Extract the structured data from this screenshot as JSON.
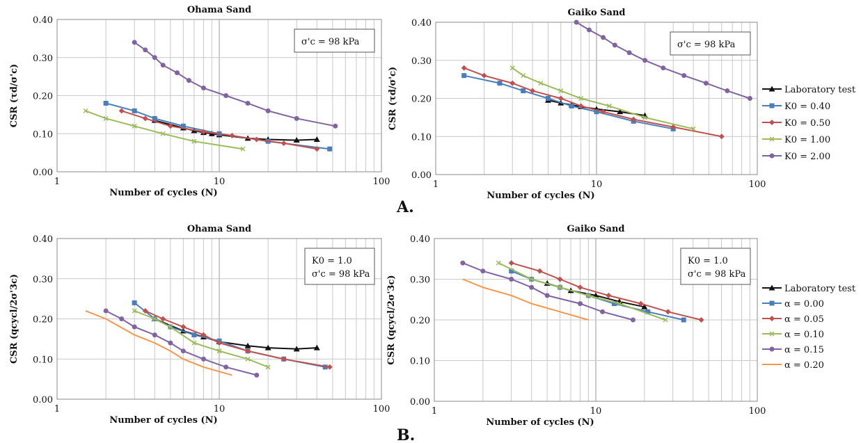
{
  "figure": {
    "label_a": "A.",
    "label_b": "B."
  },
  "legend_a": [
    "Laboratory test",
    "K0 = 0.40",
    "K0 = 0.50",
    "K0 = 1.00",
    "K0 = 2.00"
  ],
  "legend_b": [
    "Laboratory test",
    "α = 0.00",
    "α = 0.05",
    "α = 0.10",
    "α = 0.15",
    "α = 0.20"
  ],
  "chart_data": [
    {
      "type": "line",
      "title": "Ohama Sand",
      "xlabel": "Number of cycles (N)",
      "ylabel": "CSR (τd/σ'c)",
      "xscale": "log",
      "xlim": [
        1,
        100
      ],
      "ylim": [
        0,
        0.4
      ],
      "x_ticks": [
        "1",
        "10",
        "100"
      ],
      "y_ticks": [
        "0.00",
        "0.10",
        "0.20",
        "0.30",
        "0.40"
      ],
      "annotation": [
        "σ'c = 98 kPa"
      ],
      "grid": true,
      "legend": false,
      "series": [
        {
          "name": "Laboratory test",
          "color": "#111111",
          "marker": "triangle",
          "x": [
            4,
            6,
            7,
            8,
            9,
            10,
            15,
            20,
            30,
            40
          ],
          "y": [
            0.135,
            0.115,
            0.108,
            0.103,
            0.1,
            0.097,
            0.088,
            0.085,
            0.083,
            0.085
          ]
        },
        {
          "name": "K0 = 0.40",
          "color": "#4a7ebb",
          "marker": "square",
          "x": [
            2,
            3,
            4,
            6,
            10,
            20,
            48
          ],
          "y": [
            0.18,
            0.16,
            0.14,
            0.12,
            0.1,
            0.08,
            0.06
          ]
        },
        {
          "name": "K0 = 0.50",
          "color": "#c0504d",
          "marker": "diamond",
          "x": [
            2.5,
            3.5,
            5,
            8,
            12,
            17,
            25,
            40
          ],
          "y": [
            0.16,
            0.14,
            0.12,
            0.105,
            0.095,
            0.085,
            0.075,
            0.06
          ]
        },
        {
          "name": "K0 = 1.00",
          "color": "#9bbb59",
          "marker": "x",
          "x": [
            1.5,
            2,
            3,
            4.5,
            7,
            14
          ],
          "y": [
            0.16,
            0.14,
            0.12,
            0.1,
            0.08,
            0.06
          ]
        },
        {
          "name": "K0 = 2.00",
          "color": "#8064a2",
          "marker": "circle",
          "x": [
            3,
            3.5,
            4,
            4.5,
            5.5,
            6.5,
            8,
            11,
            15,
            20,
            30,
            52
          ],
          "y": [
            0.34,
            0.32,
            0.3,
            0.28,
            0.26,
            0.24,
            0.22,
            0.2,
            0.18,
            0.16,
            0.14,
            0.12
          ]
        }
      ]
    },
    {
      "type": "line",
      "title": "Gaiko Sand",
      "xlabel": "Number of cycles (N)",
      "ylabel": "CSR (τd/σ'c)",
      "xscale": "log",
      "xlim": [
        1,
        100
      ],
      "ylim": [
        0,
        0.4
      ],
      "x_ticks": [
        "1",
        "10",
        "100"
      ],
      "y_ticks": [
        "0.00",
        "0.10",
        "0.20",
        "0.30",
        "0.40"
      ],
      "annotation": [
        "σ'c = 98 kPa"
      ],
      "grid": true,
      "legend": "right",
      "series": [
        {
          "name": "Laboratory test",
          "color": "#111111",
          "marker": "triangle",
          "x": [
            5,
            6,
            7,
            8,
            10,
            14,
            20
          ],
          "y": [
            0.195,
            0.188,
            0.183,
            0.178,
            0.172,
            0.165,
            0.155
          ]
        },
        {
          "name": "K0 = 0.40",
          "color": "#4a7ebb",
          "marker": "square",
          "x": [
            1.5,
            2.5,
            3.5,
            5,
            7,
            10,
            17,
            30
          ],
          "y": [
            0.26,
            0.24,
            0.22,
            0.2,
            0.18,
            0.165,
            0.14,
            0.12
          ]
        },
        {
          "name": "K0 = 0.50",
          "color": "#c0504d",
          "marker": "diamond",
          "x": [
            1.5,
            2,
            3,
            4,
            6,
            8,
            11,
            17,
            30,
            60
          ],
          "y": [
            0.28,
            0.26,
            0.24,
            0.22,
            0.2,
            0.18,
            0.165,
            0.145,
            0.125,
            0.1
          ]
        },
        {
          "name": "K0 = 1.00",
          "color": "#9bbb59",
          "marker": "x",
          "x": [
            3,
            3.5,
            4.5,
            6,
            8,
            12,
            20,
            40
          ],
          "y": [
            0.28,
            0.26,
            0.24,
            0.22,
            0.2,
            0.18,
            0.15,
            0.12
          ]
        },
        {
          "name": "K0 = 2.00",
          "color": "#8064a2",
          "marker": "circle",
          "x": [
            7.5,
            9,
            11,
            13,
            16,
            20,
            26,
            35,
            48,
            65,
            90
          ],
          "y": [
            0.4,
            0.38,
            0.36,
            0.34,
            0.32,
            0.3,
            0.28,
            0.26,
            0.24,
            0.22,
            0.2
          ]
        }
      ]
    },
    {
      "type": "line",
      "title": "Ohama Sand",
      "xlabel": "Number of cycles (N)",
      "ylabel": "CSR (qcycl/2σ'3c)",
      "xscale": "log",
      "xlim": [
        1,
        100
      ],
      "ylim": [
        0,
        0.4
      ],
      "x_ticks": [
        "1",
        "10",
        "100"
      ],
      "y_ticks": [
        "0.00",
        "0.10",
        "0.20",
        "0.30",
        "0.40"
      ],
      "annotation": [
        "K0 = 1.0",
        "σ'c = 98 kPa"
      ],
      "grid": true,
      "legend": false,
      "series": [
        {
          "name": "Laboratory test",
          "color": "#111111",
          "marker": "triangle",
          "x": [
            4,
            6,
            8,
            10,
            15,
            20,
            30,
            40
          ],
          "y": [
            0.2,
            0.17,
            0.155,
            0.143,
            0.133,
            0.128,
            0.125,
            0.128
          ]
        },
        {
          "name": "α = 0.00",
          "color": "#4a7ebb",
          "marker": "square",
          "x": [
            3,
            4,
            5,
            7,
            10,
            15,
            25,
            45
          ],
          "y": [
            0.24,
            0.2,
            0.18,
            0.16,
            0.145,
            0.12,
            0.1,
            0.08
          ]
        },
        {
          "name": "α = 0.05",
          "color": "#c0504d",
          "marker": "diamond",
          "x": [
            3.5,
            4.5,
            6,
            8,
            10,
            15,
            25,
            48
          ],
          "y": [
            0.22,
            0.2,
            0.18,
            0.16,
            0.14,
            0.12,
            0.1,
            0.08
          ]
        },
        {
          "name": "α = 0.10",
          "color": "#9bbb59",
          "marker": "x",
          "x": [
            3,
            4,
            5,
            7,
            10,
            15,
            20
          ],
          "y": [
            0.22,
            0.2,
            0.18,
            0.14,
            0.12,
            0.1,
            0.08
          ]
        },
        {
          "name": "α = 0.15",
          "color": "#8064a2",
          "marker": "circle",
          "x": [
            2,
            2.5,
            3,
            4,
            5,
            6,
            8,
            11,
            17
          ],
          "y": [
            0.22,
            0.2,
            0.18,
            0.16,
            0.14,
            0.12,
            0.1,
            0.08,
            0.06
          ]
        },
        {
          "name": "α = 0.20",
          "color": "#f79646",
          "marker": "none",
          "x": [
            1.5,
            2,
            3,
            4,
            5,
            6,
            8,
            12
          ],
          "y": [
            0.22,
            0.2,
            0.16,
            0.14,
            0.12,
            0.1,
            0.08,
            0.06
          ]
        }
      ]
    },
    {
      "type": "line",
      "title": "Gaiko Sand",
      "xlabel": "Number of cycles (N)",
      "ylabel": "CSR (qcycl/2σ'3c)",
      "xscale": "log",
      "xlim": [
        1,
        100
      ],
      "ylim": [
        0,
        0.4
      ],
      "x_ticks": [
        "1",
        "10",
        "100"
      ],
      "y_ticks": [
        "0.00",
        "0.10",
        "0.20",
        "0.30",
        "0.40"
      ],
      "annotation": [
        "K0 = 1.0",
        "σ'c = 98 kPa"
      ],
      "grid": true,
      "legend": "right",
      "series": [
        {
          "name": "Laboratory test",
          "color": "#111111",
          "marker": "triangle",
          "x": [
            5,
            7,
            10,
            14,
            20
          ],
          "y": [
            0.29,
            0.272,
            0.26,
            0.245,
            0.232
          ]
        },
        {
          "name": "α = 0.00",
          "color": "#4a7ebb",
          "marker": "square",
          "x": [
            3,
            4,
            6,
            9,
            13,
            21,
            35
          ],
          "y": [
            0.32,
            0.3,
            0.28,
            0.26,
            0.24,
            0.22,
            0.2
          ]
        },
        {
          "name": "α = 0.05",
          "color": "#c0504d",
          "marker": "diamond",
          "x": [
            3,
            4.5,
            6,
            8,
            12,
            19,
            28,
            45
          ],
          "y": [
            0.34,
            0.32,
            0.3,
            0.28,
            0.26,
            0.24,
            0.22,
            0.2
          ]
        },
        {
          "name": "α = 0.10",
          "color": "#9bbb59",
          "marker": "x",
          "x": [
            2.5,
            4,
            6,
            9,
            14,
            27
          ],
          "y": [
            0.34,
            0.3,
            0.28,
            0.26,
            0.24,
            0.2
          ]
        },
        {
          "name": "α = 0.15",
          "color": "#8064a2",
          "marker": "circle",
          "x": [
            1.5,
            2,
            3,
            4,
            5,
            8,
            11,
            17
          ],
          "y": [
            0.34,
            0.32,
            0.3,
            0.28,
            0.26,
            0.24,
            0.22,
            0.2
          ]
        },
        {
          "name": "α = 0.20",
          "color": "#f79646",
          "marker": "none",
          "x": [
            1.5,
            2,
            3,
            4,
            6,
            9
          ],
          "y": [
            0.3,
            0.28,
            0.26,
            0.24,
            0.22,
            0.2
          ]
        }
      ]
    }
  ]
}
